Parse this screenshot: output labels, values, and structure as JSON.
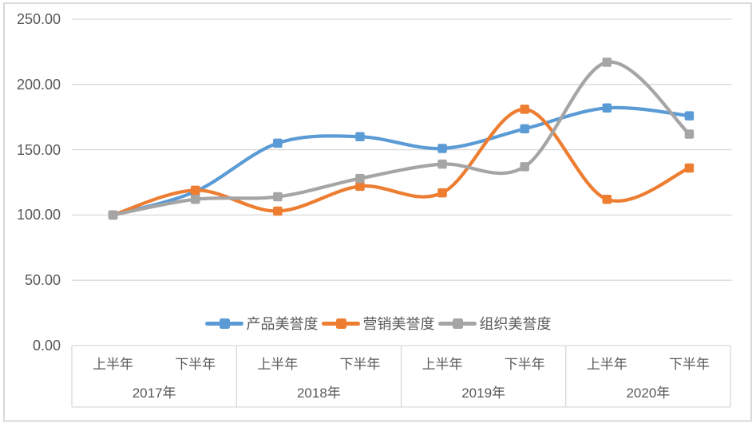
{
  "chart_data": {
    "type": "line",
    "smoothed": true,
    "grid": true,
    "legend_position": "bottom",
    "y_axis": {
      "min": 0,
      "max": 250,
      "ticks": [
        {
          "value": 0,
          "label": "0.00"
        },
        {
          "value": 50,
          "label": "50.00"
        },
        {
          "value": 100,
          "label": "100.00"
        },
        {
          "value": 150,
          "label": "150.00"
        },
        {
          "value": 200,
          "label": "200.00"
        },
        {
          "value": 250,
          "label": "250.00"
        }
      ]
    },
    "x_axis": {
      "groups": [
        {
          "year": "2017年",
          "halves": [
            "上半年",
            "下半年"
          ]
        },
        {
          "year": "2018年",
          "halves": [
            "上半年",
            "下半年"
          ]
        },
        {
          "year": "2019年",
          "halves": [
            "上半年",
            "下半年"
          ]
        },
        {
          "year": "2020年",
          "halves": [
            "上半年",
            "下半年"
          ]
        }
      ]
    },
    "series": [
      {
        "name": "产品美誉度",
        "color": "#5B9BD5",
        "values": [
          100,
          118,
          155,
          160,
          151,
          166,
          182,
          176
        ]
      },
      {
        "name": "营销美誉度",
        "color": "#ED7D31",
        "values": [
          100,
          119,
          103,
          122,
          117,
          181,
          112,
          136
        ]
      },
      {
        "name": "组织美誉度",
        "color": "#A5A5A5",
        "values": [
          100,
          112,
          114,
          128,
          139,
          137,
          217,
          162
        ]
      }
    ],
    "colors": {
      "grid": "#D9D9D9",
      "border": "#D9D9D9",
      "axis_text": "#595959",
      "background": "#FFFFFF"
    }
  }
}
